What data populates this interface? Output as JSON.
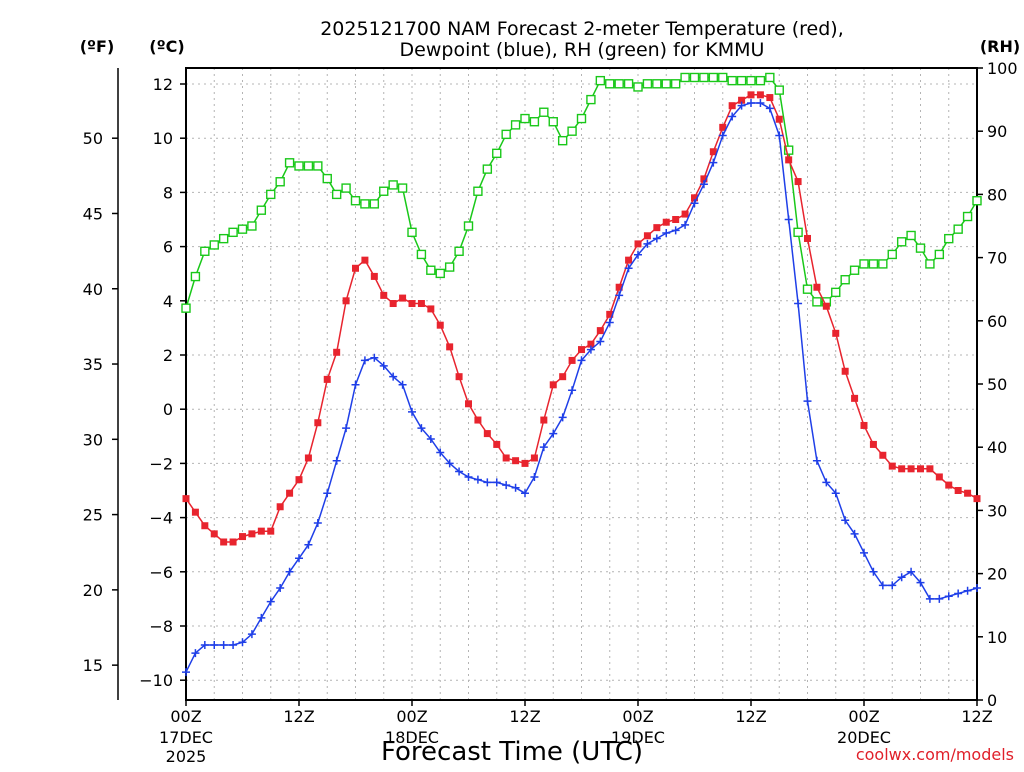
{
  "chart_data": {
    "type": "line",
    "title": [
      "2025121700 NAM Forecast 2-meter Temperature (red),",
      "Dewpoint (blue), RH (green) for KMMU"
    ],
    "xlabel": "Forecast Time (UTC)",
    "credit": "coolwx.com/models",
    "left_unit_f": "(ºF)",
    "left_unit_c": "(ºC)",
    "right_unit": "(RH)",
    "x_hours_range": [
      0,
      84
    ],
    "c_range": [
      -10.5,
      12.5
    ],
    "rh_range": [
      0,
      100
    ],
    "c_ticks": [
      "12",
      "10",
      "8",
      "6",
      "4",
      "2",
      "0",
      "−2",
      "−4",
      "−6",
      "−8",
      "−10"
    ],
    "c_tick_values": [
      12,
      10,
      8,
      6,
      4,
      2,
      0,
      -2,
      -4,
      -6,
      -8,
      -10
    ],
    "f_ticks": [
      "50",
      "45",
      "40",
      "35",
      "30",
      "25",
      "20",
      "15"
    ],
    "f_tick_values": [
      50,
      45,
      40,
      35,
      30,
      25,
      20,
      15
    ],
    "rh_ticks": [
      "100",
      "90",
      "80",
      "70",
      "60",
      "50",
      "40",
      "30",
      "20",
      "10",
      "0"
    ],
    "rh_tick_values": [
      100,
      90,
      80,
      70,
      60,
      50,
      40,
      30,
      20,
      10,
      0
    ],
    "x_tick_hours": [
      0,
      12,
      24,
      36,
      48,
      60,
      72,
      84
    ],
    "x_tick_labels": [
      "00Z",
      "12Z",
      "00Z",
      "12Z",
      "00Z",
      "12Z",
      "00Z",
      "12Z"
    ],
    "date_labels": [
      {
        "hour": 0,
        "lines": [
          "17DEC",
          "2025"
        ]
      },
      {
        "hour": 24,
        "lines": [
          "18DEC"
        ]
      },
      {
        "hour": 48,
        "lines": [
          "19DEC"
        ]
      },
      {
        "hour": 72,
        "lines": [
          "20DEC"
        ]
      }
    ],
    "series": [
      {
        "name": "Temperature",
        "axis": "C",
        "color": "#e8242e",
        "marker": "filled-square",
        "x": [
          0,
          1,
          2,
          3,
          4,
          5,
          6,
          7,
          8,
          9,
          10,
          11,
          12,
          13,
          14,
          15,
          16,
          17,
          18,
          19,
          20,
          21,
          22,
          23,
          24,
          25,
          26,
          27,
          28,
          29,
          30,
          31,
          32,
          33,
          34,
          35,
          36,
          37,
          38,
          39,
          40,
          41,
          42,
          43,
          44,
          45,
          46,
          47,
          48,
          49,
          50,
          51,
          52,
          53,
          54,
          55,
          56,
          57,
          58,
          59,
          60,
          61,
          62,
          63,
          64,
          65,
          66,
          67,
          68,
          69,
          70,
          71,
          72,
          73,
          74,
          75,
          76,
          77,
          78,
          79,
          80,
          81,
          82,
          83,
          84
        ],
        "values": [
          -3.3,
          -3.8,
          -4.3,
          -4.6,
          -4.9,
          -4.9,
          -4.7,
          -4.6,
          -4.5,
          -4.5,
          -3.6,
          -3.1,
          -2.6,
          -1.8,
          -0.5,
          1.1,
          2.1,
          4.0,
          5.2,
          5.5,
          4.9,
          4.2,
          3.9,
          4.1,
          3.9,
          3.9,
          3.7,
          3.1,
          2.3,
          1.2,
          0.2,
          -0.4,
          -0.9,
          -1.3,
          -1.8,
          -1.9,
          -2.0,
          -1.8,
          -0.4,
          0.9,
          1.2,
          1.8,
          2.2,
          2.4,
          2.9,
          3.5,
          4.5,
          5.5,
          6.1,
          6.4,
          6.7,
          6.9,
          7.0,
          7.2,
          7.8,
          8.5,
          9.5,
          10.4,
          11.2,
          11.4,
          11.6,
          11.6,
          11.5,
          10.7,
          9.2,
          8.4,
          6.3,
          4.5,
          3.8,
          2.8,
          1.4,
          0.4,
          -0.6,
          -1.3,
          -1.7,
          -2.1,
          -2.2,
          -2.2,
          -2.2,
          -2.2,
          -2.5,
          -2.8,
          -3.0,
          -3.1,
          -3.3
        ]
      },
      {
        "name": "Dewpoint",
        "axis": "C",
        "color": "#1f3fe8",
        "marker": "plus",
        "x": [
          0,
          1,
          2,
          3,
          4,
          5,
          6,
          7,
          8,
          9,
          10,
          11,
          12,
          13,
          14,
          15,
          16,
          17,
          18,
          19,
          20,
          21,
          22,
          23,
          24,
          25,
          26,
          27,
          28,
          29,
          30,
          31,
          32,
          33,
          34,
          35,
          36,
          37,
          38,
          39,
          40,
          41,
          42,
          43,
          44,
          45,
          46,
          47,
          48,
          49,
          50,
          51,
          52,
          53,
          54,
          55,
          56,
          57,
          58,
          59,
          60,
          61,
          62,
          63,
          64,
          65,
          66,
          67,
          68,
          69,
          70,
          71,
          72,
          73,
          74,
          75,
          76,
          77,
          78,
          79,
          80,
          81,
          82,
          83,
          84
        ],
        "values": [
          -9.7,
          -9.0,
          -8.7,
          -8.7,
          -8.7,
          -8.7,
          -8.6,
          -8.3,
          -7.7,
          -7.1,
          -6.6,
          -6.0,
          -5.5,
          -5.0,
          -4.2,
          -3.1,
          -1.9,
          -0.7,
          0.9,
          1.8,
          1.9,
          1.6,
          1.2,
          0.9,
          -0.1,
          -0.7,
          -1.1,
          -1.6,
          -2.0,
          -2.3,
          -2.5,
          -2.6,
          -2.7,
          -2.7,
          -2.8,
          -2.9,
          -3.1,
          -2.5,
          -1.4,
          -0.9,
          -0.3,
          0.7,
          1.8,
          2.2,
          2.5,
          3.2,
          4.2,
          5.2,
          5.7,
          6.1,
          6.3,
          6.5,
          6.6,
          6.8,
          7.6,
          8.3,
          9.1,
          10.1,
          10.8,
          11.2,
          11.3,
          11.3,
          11.1,
          10.1,
          7.0,
          3.9,
          0.3,
          -1.9,
          -2.7,
          -3.1,
          -4.1,
          -4.6,
          -5.3,
          -6.0,
          -6.5,
          -6.5,
          -6.2,
          -6.0,
          -6.4,
          -7.0,
          -7.0,
          -6.9,
          -6.8,
          -6.7,
          -6.6
        ]
      },
      {
        "name": "RH",
        "axis": "RH",
        "color": "#19c819",
        "marker": "open-square",
        "x": [
          0,
          1,
          2,
          3,
          4,
          5,
          6,
          7,
          8,
          9,
          10,
          11,
          12,
          13,
          14,
          15,
          16,
          17,
          18,
          19,
          20,
          21,
          22,
          23,
          24,
          25,
          26,
          27,
          28,
          29,
          30,
          31,
          32,
          33,
          34,
          35,
          36,
          37,
          38,
          39,
          40,
          41,
          42,
          43,
          44,
          45,
          46,
          47,
          48,
          49,
          50,
          51,
          52,
          53,
          54,
          55,
          56,
          57,
          58,
          59,
          60,
          61,
          62,
          63,
          64,
          65,
          66,
          67,
          68,
          69,
          70,
          71,
          72,
          73,
          74,
          75,
          76,
          77,
          78,
          79,
          80,
          81,
          82,
          83,
          84
        ],
        "values": [
          62,
          67,
          71,
          72,
          73,
          74,
          74.5,
          75,
          77.5,
          80,
          82,
          85,
          84.5,
          84.5,
          84.5,
          82.5,
          80,
          81,
          79,
          78.5,
          78.5,
          80.5,
          81.5,
          81,
          74,
          70.5,
          68,
          67.5,
          68.5,
          71,
          75,
          80.5,
          84,
          86.5,
          89.5,
          91,
          92,
          91.5,
          93,
          91.5,
          88.5,
          90,
          92,
          95,
          98,
          97.5,
          97.5,
          97.5,
          97,
          97.5,
          97.5,
          97.5,
          97.5,
          98.5,
          98.5,
          98.5,
          98.5,
          98.5,
          98,
          98,
          98,
          98,
          98.5,
          96.5,
          87,
          74,
          65,
          63,
          63,
          64.5,
          66.5,
          68,
          69,
          69,
          69,
          70.5,
          72.5,
          73.5,
          71.5,
          69,
          70.5,
          73,
          74.5,
          76.5,
          79
        ]
      }
    ]
  }
}
